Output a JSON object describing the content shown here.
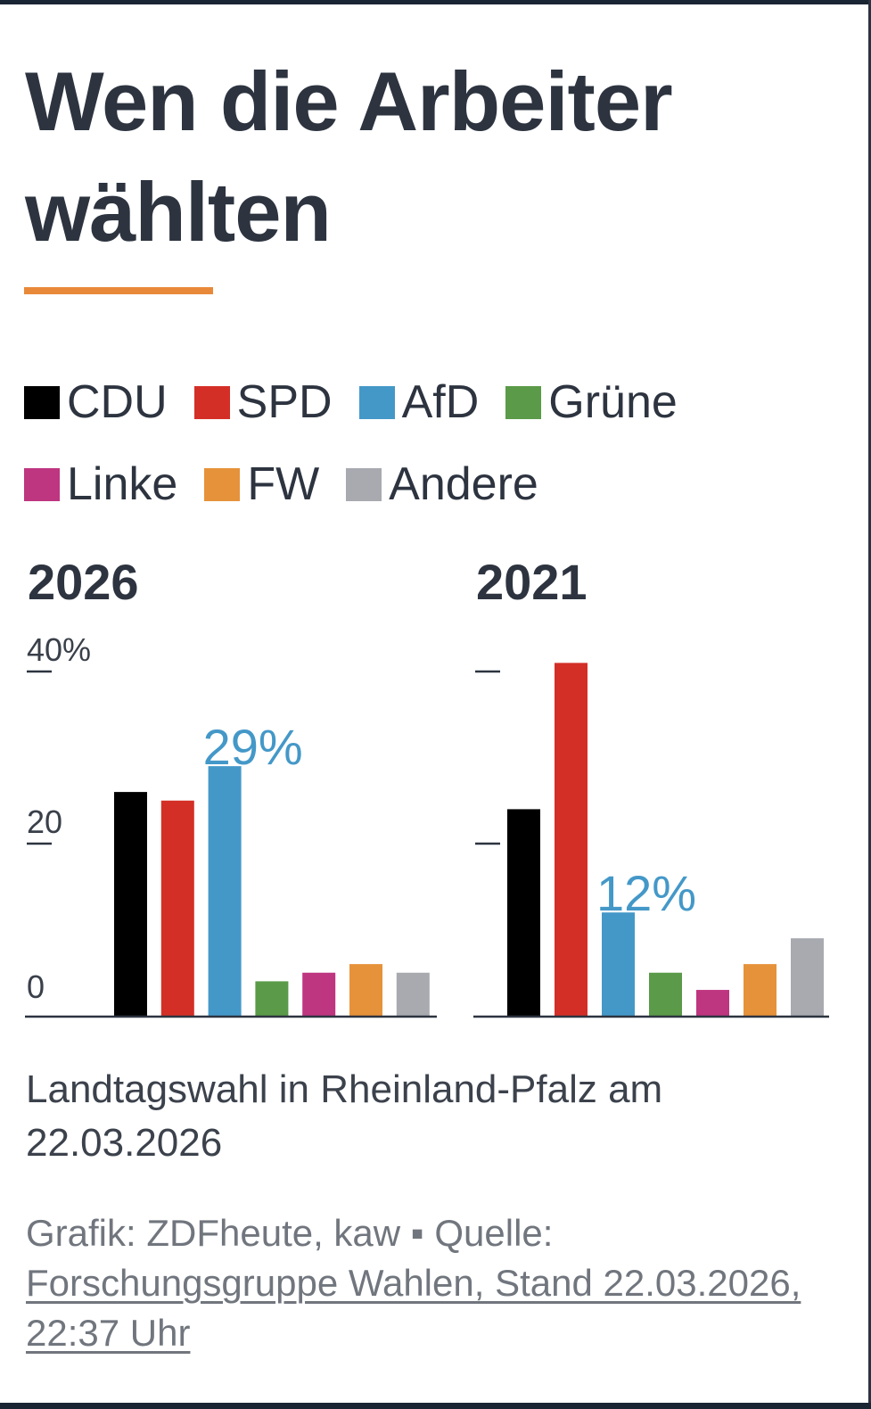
{
  "title": "Wen die Arbeiter wählten",
  "colors": {
    "accent": "#e8893a",
    "text": "#2d3440",
    "highlight": "#4498c8"
  },
  "legend": [
    {
      "label": "CDU",
      "color": "#000000"
    },
    {
      "label": "SPD",
      "color": "#d32f27"
    },
    {
      "label": "AfD",
      "color": "#4498c8"
    },
    {
      "label": "Grüne",
      "color": "#5a9a48"
    },
    {
      "label": "Linke",
      "color": "#be3580"
    },
    {
      "label": "FW",
      "color": "#e6923a"
    },
    {
      "label": "Andere",
      "color": "#a8aab0"
    }
  ],
  "chart_data": [
    {
      "type": "bar",
      "title": "2026",
      "categories": [
        "CDU",
        "SPD",
        "AfD",
        "Grüne",
        "Linke",
        "FW",
        "Andere"
      ],
      "values": [
        26,
        25,
        29,
        4,
        5,
        6,
        5
      ],
      "highlight": {
        "category": "AfD",
        "label": "29%"
      },
      "yticks": [
        0,
        20,
        40
      ],
      "ytick_labels": [
        "0",
        "20",
        "40%"
      ],
      "ylim": [
        0,
        40
      ],
      "xlabel": "",
      "ylabel": ""
    },
    {
      "type": "bar",
      "title": "2021",
      "categories": [
        "CDU",
        "SPD",
        "AfD",
        "Grüne",
        "Linke",
        "FW",
        "Andere"
      ],
      "values": [
        24,
        41,
        12,
        5,
        3,
        6,
        9
      ],
      "highlight": {
        "category": "AfD",
        "label": "12%"
      },
      "yticks": [
        20,
        40
      ],
      "ytick_labels": [
        "",
        ""
      ],
      "ylim": [
        0,
        40
      ],
      "xlabel": "",
      "ylabel": ""
    }
  ],
  "caption": "Landtagswahl in Rheinland-Pfalz am 22.03.2026",
  "source": {
    "prefix": "Grafik: ZDFheute, kaw ▪ Quelle: ",
    "link_text": "Forschungsgruppe Wahlen, Stand 22.03.2026, 22:37 Uhr"
  }
}
